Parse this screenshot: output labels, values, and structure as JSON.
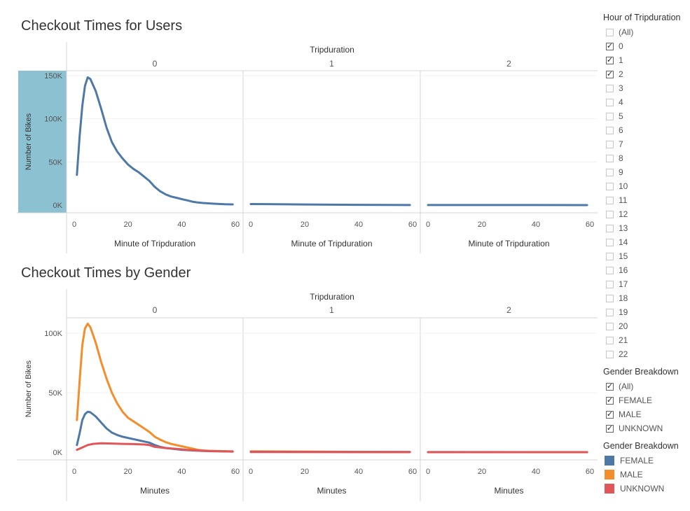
{
  "chart_data": [
    {
      "type": "line",
      "title": "Checkout Times for Users",
      "column_header": "Tripduration",
      "panels": [
        "0",
        "1",
        "2"
      ],
      "xlabel": "Minute of Tripduration",
      "ylabel": "Number of Bikes",
      "xlim": [
        0,
        60
      ],
      "ylim": [
        0,
        150000
      ],
      "x_ticks": [
        "0",
        "20",
        "40",
        "60"
      ],
      "y_ticks": [
        "0K",
        "50K",
        "100K",
        "150K"
      ],
      "series": [
        {
          "color": "#4e79a7",
          "panel_values": [
            [
              [
                1,
                35000
              ],
              [
                2,
                80000
              ],
              [
                3,
                115000
              ],
              [
                4,
                138000
              ],
              [
                5,
                148000
              ],
              [
                6,
                146000
              ],
              [
                8,
                132000
              ],
              [
                10,
                112000
              ],
              [
                12,
                90000
              ],
              [
                14,
                73000
              ],
              [
                16,
                62000
              ],
              [
                18,
                54000
              ],
              [
                20,
                47000
              ],
              [
                22,
                42000
              ],
              [
                24,
                38000
              ],
              [
                26,
                33000
              ],
              [
                28,
                28000
              ],
              [
                30,
                21000
              ],
              [
                32,
                16000
              ],
              [
                34,
                12500
              ],
              [
                36,
                10000
              ],
              [
                38,
                8500
              ],
              [
                40,
                7000
              ],
              [
                42,
                5500
              ],
              [
                44,
                4000
              ],
              [
                46,
                3000
              ],
              [
                48,
                2400
              ],
              [
                50,
                2000
              ],
              [
                52,
                1600
              ],
              [
                54,
                1300
              ],
              [
                56,
                1000
              ],
              [
                59,
                800
              ]
            ],
            [
              [
                0,
                1200
              ],
              [
                10,
                1000
              ],
              [
                20,
                700
              ],
              [
                30,
                500
              ],
              [
                40,
                300
              ],
              [
                50,
                200
              ],
              [
                59,
                100
              ]
            ],
            [
              [
                0,
                100
              ],
              [
                20,
                80
              ],
              [
                40,
                60
              ],
              [
                59,
                40
              ]
            ]
          ]
        }
      ]
    },
    {
      "type": "line",
      "title": "Checkout Times by Gender",
      "column_header": "Tripduration",
      "panels": [
        "0",
        "1",
        "2"
      ],
      "xlabel": "Minutes",
      "ylabel": "Number of Bikes",
      "xlim": [
        0,
        60
      ],
      "ylim": [
        0,
        110000
      ],
      "x_ticks": [
        "0",
        "20",
        "40",
        "60"
      ],
      "y_ticks": [
        "0K",
        "50K",
        "100K"
      ],
      "series": [
        {
          "name": "MALE",
          "color": "#f28e2b",
          "panel_values": [
            [
              [
                1,
                27000
              ],
              [
                2,
                60000
              ],
              [
                3,
                90000
              ],
              [
                4,
                104000
              ],
              [
                5,
                108000
              ],
              [
                6,
                105000
              ],
              [
                8,
                92000
              ],
              [
                10,
                76000
              ],
              [
                12,
                62000
              ],
              [
                14,
                50000
              ],
              [
                16,
                41000
              ],
              [
                18,
                34000
              ],
              [
                20,
                29000
              ],
              [
                22,
                26000
              ],
              [
                24,
                23000
              ],
              [
                26,
                20000
              ],
              [
                28,
                17000
              ],
              [
                30,
                13000
              ],
              [
                32,
                10500
              ],
              [
                34,
                8500
              ],
              [
                36,
                7000
              ],
              [
                38,
                6000
              ],
              [
                40,
                5000
              ],
              [
                42,
                4000
              ],
              [
                44,
                3000
              ],
              [
                46,
                2000
              ],
              [
                48,
                1500
              ],
              [
                50,
                1200
              ],
              [
                55,
                900
              ],
              [
                59,
                700
              ]
            ],
            [
              [
                0,
                700
              ],
              [
                20,
                500
              ],
              [
                40,
                300
              ],
              [
                59,
                200
              ]
            ],
            [
              [
                0,
                80
              ],
              [
                30,
                60
              ],
              [
                59,
                40
              ]
            ]
          ]
        },
        {
          "name": "FEMALE",
          "color": "#4e79a7",
          "panel_values": [
            [
              [
                1,
                6000
              ],
              [
                2,
                16000
              ],
              [
                3,
                27000
              ],
              [
                4,
                32000
              ],
              [
                5,
                34000
              ],
              [
                6,
                33500
              ],
              [
                8,
                30000
              ],
              [
                10,
                25000
              ],
              [
                12,
                20000
              ],
              [
                14,
                16500
              ],
              [
                16,
                14500
              ],
              [
                18,
                13000
              ],
              [
                20,
                12000
              ],
              [
                22,
                11000
              ],
              [
                24,
                10000
              ],
              [
                26,
                9000
              ],
              [
                28,
                8000
              ],
              [
                30,
                6000
              ],
              [
                32,
                4500
              ],
              [
                34,
                3500
              ],
              [
                36,
                3000
              ],
              [
                38,
                2500
              ],
              [
                40,
                2000
              ],
              [
                44,
                1500
              ],
              [
                48,
                1000
              ],
              [
                52,
                800
              ],
              [
                59,
                500
              ]
            ],
            [
              [
                0,
                300
              ],
              [
                30,
                200
              ],
              [
                59,
                100
              ]
            ],
            [
              [
                0,
                30
              ],
              [
                59,
                20
              ]
            ]
          ]
        },
        {
          "name": "UNKNOWN",
          "color": "#e15759",
          "panel_values": [
            [
              [
                1,
                2000
              ],
              [
                3,
                4000
              ],
              [
                5,
                6000
              ],
              [
                7,
                7000
              ],
              [
                10,
                7500
              ],
              [
                14,
                7300
              ],
              [
                18,
                7000
              ],
              [
                22,
                6800
              ],
              [
                26,
                6500
              ],
              [
                28,
                6000
              ],
              [
                30,
                4500
              ],
              [
                34,
                3500
              ],
              [
                38,
                2800
              ],
              [
                42,
                2000
              ],
              [
                46,
                1500
              ],
              [
                50,
                1000
              ],
              [
                55,
                700
              ],
              [
                59,
                500
              ]
            ],
            [
              [
                0,
                150
              ],
              [
                30,
                100
              ],
              [
                59,
                60
              ]
            ],
            [
              [
                0,
                20
              ],
              [
                59,
                10
              ]
            ]
          ]
        }
      ]
    }
  ],
  "filters": {
    "hour": {
      "title": "Hour of Tripduration",
      "options": [
        {
          "label": "(All)",
          "checked": false
        },
        {
          "label": "0",
          "checked": true
        },
        {
          "label": "1",
          "checked": true
        },
        {
          "label": "2",
          "checked": true
        },
        {
          "label": "3",
          "checked": false
        },
        {
          "label": "4",
          "checked": false
        },
        {
          "label": "5",
          "checked": false
        },
        {
          "label": "6",
          "checked": false
        },
        {
          "label": "7",
          "checked": false
        },
        {
          "label": "8",
          "checked": false
        },
        {
          "label": "9",
          "checked": false
        },
        {
          "label": "10",
          "checked": false
        },
        {
          "label": "11",
          "checked": false
        },
        {
          "label": "12",
          "checked": false
        },
        {
          "label": "13",
          "checked": false
        },
        {
          "label": "14",
          "checked": false
        },
        {
          "label": "15",
          "checked": false
        },
        {
          "label": "16",
          "checked": false
        },
        {
          "label": "17",
          "checked": false
        },
        {
          "label": "18",
          "checked": false
        },
        {
          "label": "19",
          "checked": false
        },
        {
          "label": "20",
          "checked": false
        },
        {
          "label": "21",
          "checked": false
        },
        {
          "label": "22",
          "checked": false
        }
      ]
    },
    "gender": {
      "title": "Gender Breakdown",
      "options": [
        {
          "label": "(All)",
          "checked": true
        },
        {
          "label": "FEMALE",
          "checked": true
        },
        {
          "label": "MALE",
          "checked": true
        },
        {
          "label": "UNKNOWN",
          "checked": true
        }
      ]
    }
  },
  "legend": {
    "title": "Gender Breakdown",
    "items": [
      {
        "label": "FEMALE",
        "color": "#4e79a7"
      },
      {
        "label": "MALE",
        "color": "#f28e2b"
      },
      {
        "label": "UNKNOWN",
        "color": "#e15759"
      }
    ]
  }
}
